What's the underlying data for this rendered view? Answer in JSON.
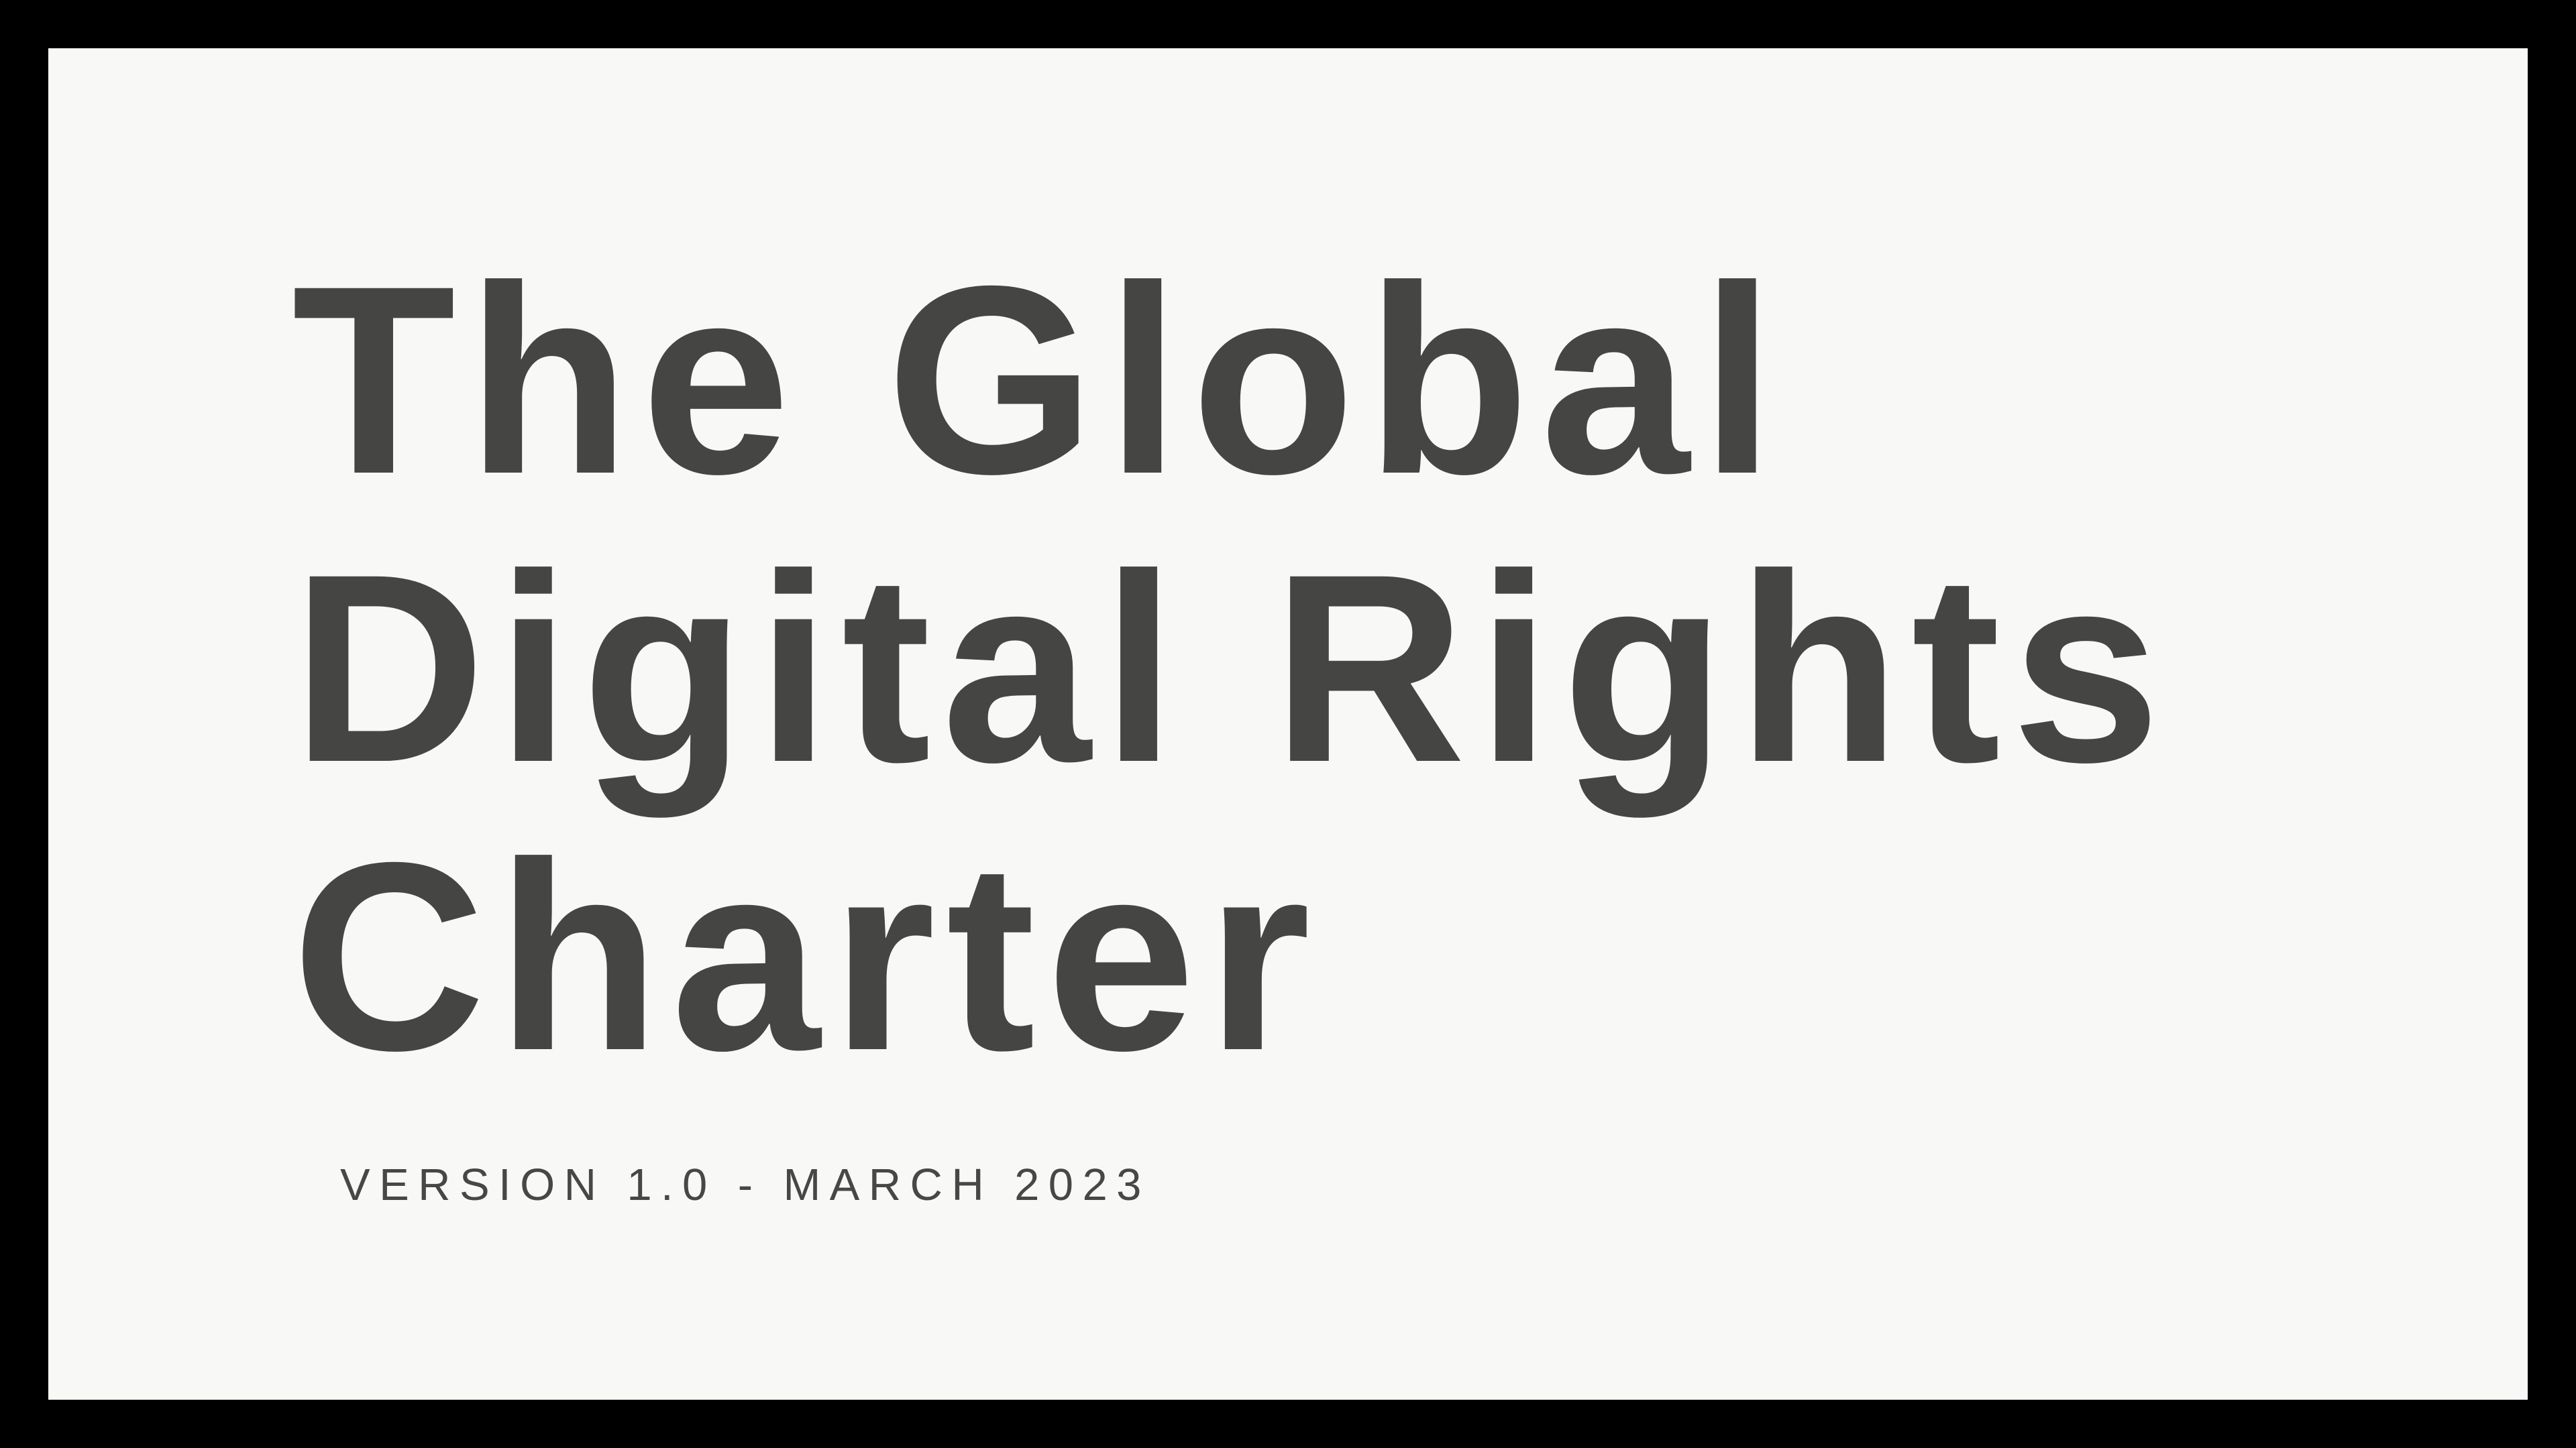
{
  "page": {
    "letterbox_color": "#000000"
  },
  "slide": {
    "background_color": "#f8f8f6",
    "title": {
      "text": "The Global Digital Rights Charter",
      "lines": [
        "The Global",
        "Digital Rights",
        "Charter"
      ],
      "color": "#454543"
    },
    "subtitle": {
      "text": "VERSION 1.0 - MARCH 2023",
      "color": "#474745"
    }
  }
}
